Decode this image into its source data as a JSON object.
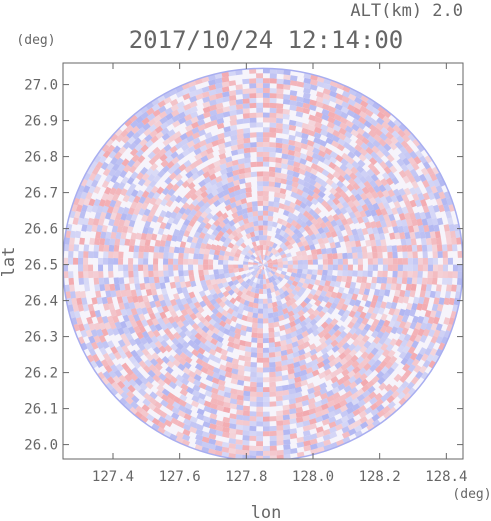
{
  "header": {
    "altitude_label": "ALT(km) 2.0",
    "timestamp": "2017/10/24 12:14:00"
  },
  "chart_data": {
    "type": "heatmap",
    "title": "2017/10/24 12:14:00",
    "xlabel": "lon",
    "ylabel": "lat",
    "xunit": "(deg)",
    "yunit": "(deg)",
    "xlim": [
      127.25,
      128.45
    ],
    "ylim": [
      25.96,
      27.06
    ],
    "xticks": [
      "127.4",
      "127.6",
      "127.8",
      "128.0",
      "128.2",
      "128.4"
    ],
    "yticks": [
      "26.0",
      "26.1",
      "26.2",
      "26.3",
      "26.4",
      "26.5",
      "26.6",
      "26.7",
      "26.8",
      "26.9",
      "27.0"
    ],
    "center": {
      "lon": 127.85,
      "lat": 26.5
    },
    "radius_deg": {
      "lon": 0.6,
      "lat": 0.545
    },
    "colors": {
      "positive": "#f2a0a5",
      "negative": "#a8aef0",
      "neutral": "#ffffff",
      "axis": "#666666"
    }
  }
}
